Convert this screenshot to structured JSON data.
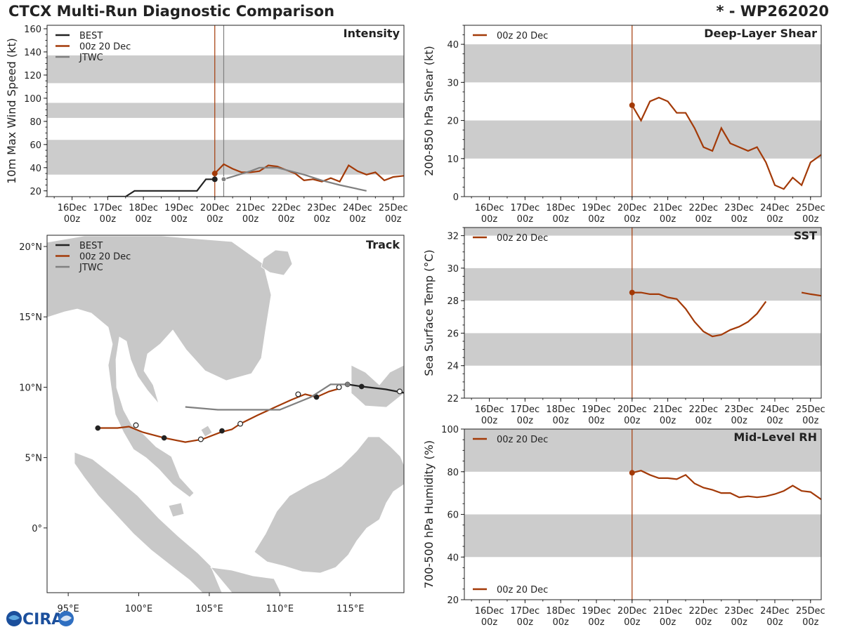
{
  "header": {
    "title": "CTCX Multi-Run Diagnostic Comparison",
    "storm": "* - WP262020"
  },
  "logo": {
    "text": "CIRA"
  },
  "time_axis": {
    "day_labels": [
      "16Dec",
      "17Dec",
      "18Dec",
      "19Dec",
      "20Dec",
      "21Dec",
      "22Dec",
      "23Dec",
      "24Dec",
      "25Dec"
    ],
    "hour_label": "00z",
    "range": [
      -4.7,
      5.3
    ],
    "model_init": 0
  },
  "chart_data": [
    {
      "id": "intensity",
      "type": "line",
      "title": "Intensity",
      "ylabel": "10m Max Wind Speed (kt)",
      "ylim": [
        15,
        163
      ],
      "yticks": [
        20,
        40,
        60,
        80,
        100,
        120,
        140,
        160
      ],
      "bands": [
        [
          34,
          64
        ],
        [
          83,
          96
        ],
        [
          113,
          137
        ]
      ],
      "vlines": [
        {
          "x": 0,
          "color": "#a33a08"
        },
        {
          "x": 0.25,
          "color": "#808080"
        }
      ],
      "legend": [
        "BEST",
        "00z 20 Dec",
        "JTWC"
      ],
      "series": [
        {
          "name": "BEST",
          "color": "#222222",
          "x": [
            -3,
            -2.5,
            -2.25,
            -2,
            -1.75,
            -1.5,
            -1.25,
            -1,
            -0.75,
            -0.5,
            -0.25,
            0
          ],
          "y": [
            15,
            15,
            20,
            20,
            20,
            20,
            20,
            20,
            20,
            20,
            30,
            30
          ],
          "marker_x": [
            0
          ],
          "marker_y": [
            30
          ]
        },
        {
          "name": "00z 20 Dec",
          "color": "#a33a08",
          "x": [
            0,
            0.25,
            0.5,
            0.75,
            1,
            1.25,
            1.5,
            1.75,
            2,
            2.25,
            2.5,
            2.75,
            3,
            3.25,
            3.5,
            3.75,
            4,
            4.25,
            4.5,
            4.75,
            5,
            5.3
          ],
          "y": [
            35,
            43,
            39,
            36,
            36,
            37,
            42,
            41,
            38,
            35,
            29,
            30,
            28,
            31,
            28,
            42,
            37,
            34,
            36,
            29,
            32,
            33
          ],
          "marker_x": [
            0
          ],
          "marker_y": [
            35
          ]
        },
        {
          "name": "JTWC",
          "color": "#808080",
          "x": [
            0.25,
            1,
            1.25,
            1.5,
            1.75,
            2,
            2.5,
            3,
            3.5,
            4.25
          ],
          "y": [
            30,
            37,
            40,
            40,
            40,
            38,
            34,
            29,
            25,
            20
          ],
          "marker_x": [
            0.25
          ],
          "marker_y": [
            30
          ]
        }
      ]
    },
    {
      "id": "shear",
      "type": "line",
      "title": "Deep-Layer Shear",
      "ylabel": "200-850 hPa Shear (kt)",
      "ylim": [
        0,
        45
      ],
      "yticks": [
        0,
        10,
        20,
        30,
        40
      ],
      "bands": [
        [
          10,
          20
        ],
        [
          30,
          40
        ]
      ],
      "vlines": [
        {
          "x": 0,
          "color": "#a33a08"
        }
      ],
      "legend": [
        "00z 20 Dec"
      ],
      "series": [
        {
          "name": "00z 20 Dec",
          "color": "#a33a08",
          "x": [
            0,
            0.25,
            0.5,
            0.75,
            1,
            1.25,
            1.5,
            1.75,
            2,
            2.25,
            2.5,
            2.75,
            3,
            3.25,
            3.5,
            3.75,
            4,
            4.25,
            4.5,
            4.75,
            5,
            5.3
          ],
          "y": [
            24,
            20,
            25,
            26,
            25,
            22,
            22,
            18,
            13,
            12,
            18,
            14,
            13,
            12,
            13,
            9,
            3,
            2,
            5,
            3,
            9,
            11
          ],
          "marker_x": [
            0
          ],
          "marker_y": [
            24
          ]
        }
      ]
    },
    {
      "id": "sst",
      "type": "line",
      "title": "SST",
      "ylabel": "Sea Surface Temp (°C)",
      "ylim": [
        22,
        32.5
      ],
      "yticks": [
        22,
        24,
        26,
        28,
        30,
        32
      ],
      "bands": [
        [
          24,
          26
        ],
        [
          28,
          30
        ],
        [
          32,
          32.5
        ]
      ],
      "vlines": [
        {
          "x": 0,
          "color": "#a33a08"
        }
      ],
      "legend": [
        "00z 20 Dec"
      ],
      "series": [
        {
          "name": "00z 20 Dec",
          "color": "#a33a08",
          "x": [
            0,
            0.25,
            0.5,
            0.75,
            1,
            1.25,
            1.5,
            1.75,
            2,
            2.25,
            2.5,
            2.75,
            3,
            3.25,
            3.5,
            3.75
          ],
          "y": [
            28.5,
            28.5,
            28.4,
            28.4,
            28.2,
            28.1,
            27.5,
            26.7,
            26.1,
            25.8,
            25.9,
            26.2,
            26.4,
            26.7,
            27.2,
            27.95
          ],
          "marker_x": [
            0
          ],
          "marker_y": [
            28.5
          ]
        },
        {
          "name": "00z 20 Dec (cont.)",
          "color": "#a33a08",
          "x": [
            4.75,
            5,
            5.3
          ],
          "y": [
            28.5,
            28.4,
            28.3
          ],
          "marker_x": [],
          "marker_y": []
        }
      ]
    },
    {
      "id": "rh",
      "type": "line",
      "title": "Mid-Level RH",
      "ylabel": "700-500 hPa Humidity (%)",
      "ylim": [
        20,
        100
      ],
      "yticks": [
        20,
        40,
        60,
        80,
        100
      ],
      "bands": [
        [
          40,
          60
        ],
        [
          80,
          100
        ]
      ],
      "vlines": [
        {
          "x": 0,
          "color": "#a33a08"
        }
      ],
      "legend": [
        "00z 20 Dec"
      ],
      "series": [
        {
          "name": "00z 20 Dec",
          "color": "#a33a08",
          "x": [
            0,
            0.25,
            0.5,
            0.75,
            1,
            1.25,
            1.5,
            1.75,
            2,
            2.25,
            2.5,
            2.75,
            3,
            3.25,
            3.5,
            3.75,
            4,
            4.25,
            4.5,
            4.75,
            5,
            5.3
          ],
          "y": [
            79.5,
            80.5,
            78.5,
            77,
            77,
            76.5,
            78.5,
            74.5,
            72.5,
            71.5,
            70,
            70,
            68,
            68.5,
            68,
            68.5,
            69.5,
            71,
            73.5,
            71,
            70.5,
            67
          ],
          "marker_x": [
            0
          ],
          "marker_y": [
            79.5
          ]
        }
      ]
    },
    {
      "id": "track",
      "type": "scatter",
      "title": "Track",
      "xlim": [
        93.5,
        118.8
      ],
      "ylim": [
        -4.6,
        20.8
      ],
      "xticks": [
        95,
        100,
        105,
        110,
        115
      ],
      "xtick_labels": [
        "95°E",
        "100°E",
        "105°E",
        "110°E",
        "115°E"
      ],
      "yticks": [
        0,
        5,
        10,
        15,
        20
      ],
      "ytick_labels": [
        "0°",
        "5°N",
        "10°N",
        "15°N",
        "20°N"
      ],
      "legend": [
        "BEST",
        "00z 20 Dec",
        "JTWC"
      ],
      "series": [
        {
          "name": "BEST",
          "color": "#222222",
          "lon": [
            114.8,
            115.8,
            117.5,
            118.8
          ],
          "lat": [
            10.2,
            10.05,
            9.85,
            9.6
          ],
          "filled_lon": [
            115.8
          ],
          "filled_lat": [
            10.05
          ],
          "open_lon": [
            118.5
          ],
          "open_lat": [
            9.7
          ]
        },
        {
          "name": "00z 20 Dec",
          "color": "#a33a08",
          "lon": [
            97.1,
            98.5,
            99.3,
            100.3,
            101.8,
            103.3,
            104.5,
            105.8,
            106.6,
            107.2,
            108.4,
            109.7,
            110.8,
            111.8,
            112.6,
            113.5,
            114.2
          ],
          "lat": [
            7.1,
            7.1,
            7.2,
            6.8,
            6.4,
            6.1,
            6.3,
            6.8,
            7.0,
            7.4,
            8.0,
            8.6,
            9.1,
            9.5,
            9.3,
            9.7,
            9.9
          ],
          "filled_lon": [
            97.1,
            101.8,
            105.9,
            112.6
          ],
          "filled_lat": [
            7.1,
            6.4,
            6.9,
            9.3
          ],
          "open_lon": [
            99.8,
            104.4,
            107.2,
            111.3,
            114.2
          ],
          "open_lat": [
            7.3,
            6.3,
            7.4,
            9.5,
            10.0
          ]
        },
        {
          "name": "JTWC",
          "color": "#808080",
          "lon": [
            103.3,
            105.6,
            108.2,
            110.0,
            112.2,
            113.6,
            114.8
          ],
          "lat": [
            8.6,
            8.4,
            8.4,
            8.4,
            9.3,
            10.2,
            10.2
          ],
          "filled_lon": [
            114.8
          ],
          "filled_lat": [
            10.2
          ],
          "open_lon": [],
          "open_lat": []
        }
      ]
    }
  ]
}
